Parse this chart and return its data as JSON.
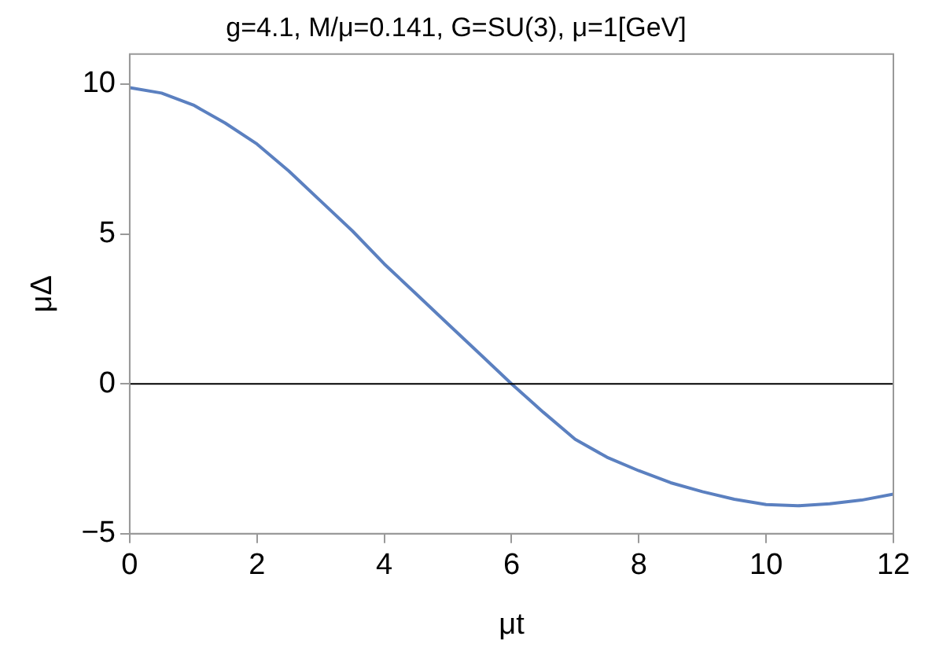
{
  "chart_data": {
    "type": "line",
    "title": "g=4.1, M/μ=0.141, G=SU(3), μ=1[GeV]",
    "xlabel": "μt",
    "ylabel": "μΔ",
    "series": [
      {
        "color": "#5b80c0",
        "x": [
          0,
          0.5,
          1,
          1.5,
          2,
          2.5,
          3,
          3.5,
          4,
          4.5,
          5,
          5.5,
          6,
          6.5,
          7,
          7.5,
          8,
          8.5,
          9,
          9.5,
          10,
          10.5,
          11,
          11.5,
          12
        ],
        "values": [
          9.88,
          9.7,
          9.3,
          8.7,
          8.0,
          7.1,
          6.1,
          5.1,
          4.0,
          3.0,
          2.0,
          1.0,
          0,
          -0.95,
          -1.85,
          -2.45,
          -2.9,
          -3.3,
          -3.6,
          -3.85,
          -4.03,
          -4.07,
          -4.0,
          -3.88,
          -3.68
        ]
      }
    ],
    "xlim": [
      0,
      12
    ],
    "xticks": [
      0,
      2,
      4,
      6,
      8,
      10,
      12
    ],
    "ylim": [
      -5,
      11
    ],
    "yticks": [
      -5,
      0,
      5,
      10
    ],
    "ref_lines": [
      {
        "axis": "y",
        "value": 0,
        "color": "#000000"
      }
    ],
    "grid": false,
    "legend": false,
    "marker": "none",
    "line_style": "solid"
  }
}
